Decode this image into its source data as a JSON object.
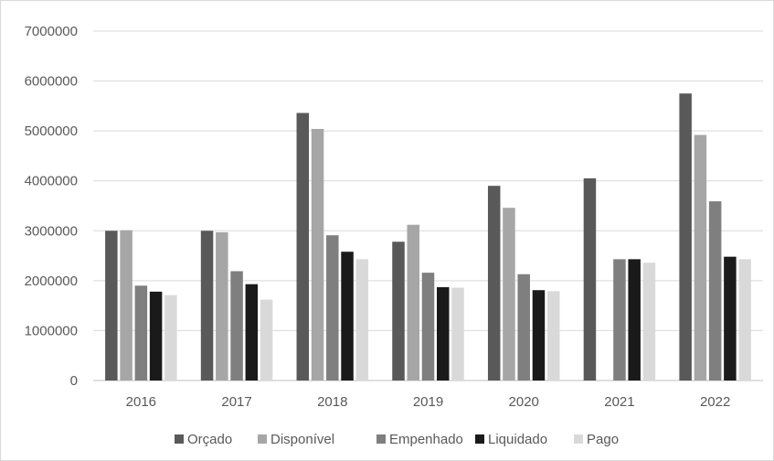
{
  "chart_data": {
    "type": "bar",
    "title": "",
    "xlabel": "",
    "ylabel": "",
    "categories": [
      "2016",
      "2017",
      "2018",
      "2019",
      "2020",
      "2021",
      "2022"
    ],
    "ylim": [
      0,
      7000000
    ],
    "yticks": [
      0,
      1000000,
      2000000,
      3000000,
      4000000,
      5000000,
      6000000,
      7000000
    ],
    "yticks_labels": [
      "0",
      "1000000",
      "2000000",
      "3000000",
      "4000000",
      "5000000",
      "6000000",
      "7000000"
    ],
    "grid": true,
    "legend_position": "bottom",
    "series": [
      {
        "name": "Orçado",
        "color": "#595959",
        "values": [
          3000000,
          3000000,
          5360000,
          2780000,
          3900000,
          4050000,
          5750000
        ]
      },
      {
        "name": "Disponível",
        "color": "#a6a6a6",
        "values": [
          3010000,
          2970000,
          5040000,
          3120000,
          3460000,
          null,
          4920000
        ]
      },
      {
        "name": "Empenhado",
        "color": "#7f7f7f",
        "values": [
          1900000,
          2190000,
          2910000,
          2160000,
          2130000,
          2430000,
          3590000
        ]
      },
      {
        "name": "Liquidado",
        "color": "#1a1a1a",
        "values": [
          1780000,
          1930000,
          2580000,
          1870000,
          1810000,
          2430000,
          2480000
        ]
      },
      {
        "name": "Pago",
        "color": "#d9d9d9",
        "values": [
          1710000,
          1620000,
          2430000,
          1860000,
          1790000,
          2360000,
          2430000
        ]
      }
    ]
  }
}
